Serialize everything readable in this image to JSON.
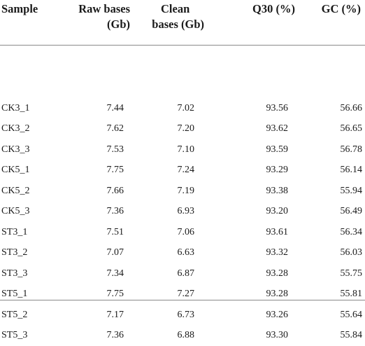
{
  "table": {
    "headers": {
      "sample": "Sample",
      "raw_bases": [
        "Raw bases",
        "(Gb)"
      ],
      "clean_bases": [
        "Clean",
        "bases (Gb)"
      ],
      "q30": "Q30 (%)",
      "gc": "GC (%)"
    },
    "rows": [
      {
        "sample": "CK3_1",
        "raw": "7.44",
        "clean": "7.02",
        "q30": "93.56",
        "gc": "56.66"
      },
      {
        "sample": "CK3_2",
        "raw": "7.62",
        "clean": "7.20",
        "q30": "93.62",
        "gc": "56.65"
      },
      {
        "sample": "CK3_3",
        "raw": "7.53",
        "clean": "7.10",
        "q30": "93.59",
        "gc": "56.78"
      },
      {
        "sample": "CK5_1",
        "raw": "7.75",
        "clean": "7.24",
        "q30": "93.29",
        "gc": "56.14"
      },
      {
        "sample": "CK5_2",
        "raw": "7.66",
        "clean": "7.19",
        "q30": "93.38",
        "gc": "55.94"
      },
      {
        "sample": "CK5_3",
        "raw": "7.36",
        "clean": "6.93",
        "q30": "93.20",
        "gc": "56.49"
      },
      {
        "sample": "ST3_1",
        "raw": "7.51",
        "clean": "7.06",
        "q30": "93.61",
        "gc": "56.34"
      },
      {
        "sample": "ST3_2",
        "raw": "7.07",
        "clean": "6.63",
        "q30": "93.32",
        "gc": "56.03"
      },
      {
        "sample": "ST3_3",
        "raw": "7.34",
        "clean": "6.87",
        "q30": "93.28",
        "gc": "55.75"
      },
      {
        "sample": "ST5_1",
        "raw": "7.75",
        "clean": "7.27",
        "q30": "93.28",
        "gc": "55.81"
      },
      {
        "sample": "ST5_2",
        "raw": "7.17",
        "clean": "6.73",
        "q30": "93.26",
        "gc": "55.64"
      },
      {
        "sample": "ST5_3",
        "raw": "7.36",
        "clean": "6.88",
        "q30": "93.30",
        "gc": "55.84"
      }
    ]
  }
}
